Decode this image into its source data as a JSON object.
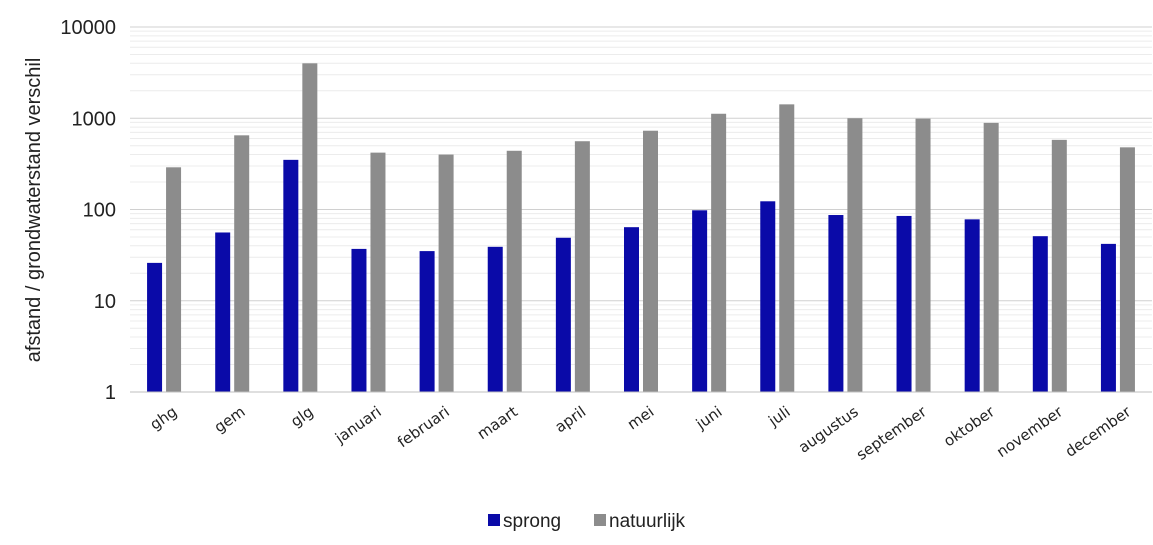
{
  "chart_data": {
    "type": "bar",
    "yscale": "log",
    "ylim": [
      1,
      10000
    ],
    "yticks": [
      1,
      10,
      100,
      1000,
      10000
    ],
    "ytick_labels": [
      "1",
      "10",
      "100",
      "1000",
      "10000"
    ],
    "grid": true,
    "legend_position": "bottom",
    "title": "",
    "xlabel": "",
    "ylabel": "afstand / grondwaterstand verschil",
    "categories": [
      "ghg",
      "gem",
      "glg",
      "januari",
      "februari",
      "maart",
      "april",
      "mei",
      "juni",
      "juli",
      "augustus",
      "september",
      "oktober",
      "november",
      "december"
    ],
    "series": [
      {
        "name": "sprong",
        "color": "#0a0aa8",
        "values": [
          26,
          56,
          350,
          37,
          35,
          39,
          49,
          64,
          98,
          123,
          87,
          85,
          78,
          51,
          42
        ]
      },
      {
        "name": "natuurlijk",
        "color": "#8c8c8c",
        "values": [
          290,
          650,
          4000,
          420,
          400,
          440,
          560,
          730,
          1120,
          1420,
          1000,
          990,
          890,
          580,
          480
        ]
      }
    ]
  }
}
